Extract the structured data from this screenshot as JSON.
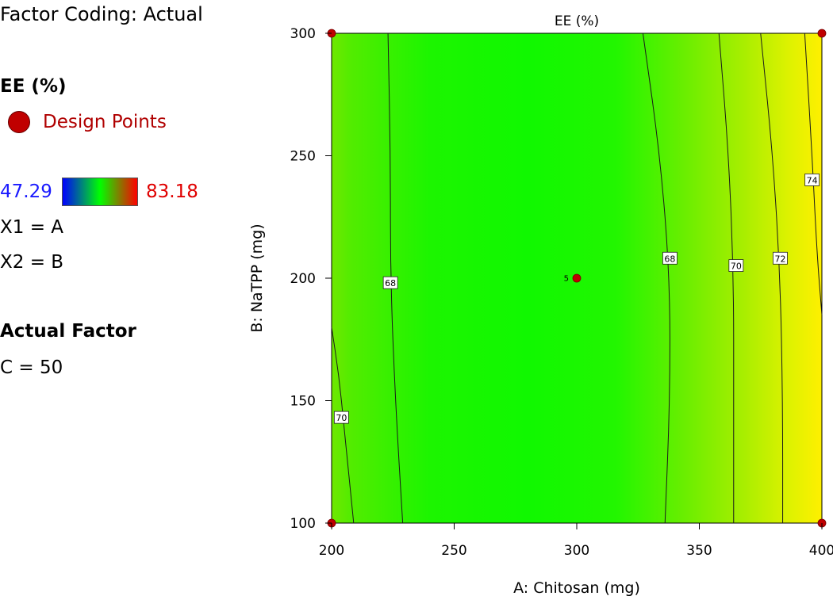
{
  "legend": {
    "factor_coding": "Factor Coding: Actual",
    "response_name": "EE (%)",
    "design_points_label": "Design Points",
    "scale_min": "47.29",
    "scale_max": "83.18",
    "x1": "X1 = A",
    "x2": "X2 = B",
    "actual_factor_title": "Actual Factor",
    "actual_factor_value": "C = 50"
  },
  "colors": {
    "low": "#0000ff",
    "mid": "#00ff00",
    "high": "#ff0000",
    "design_point": "#c00000"
  },
  "chart_data": {
    "type": "contour",
    "title": "EE (%)",
    "xlabel": "A: Chitosan (mg)",
    "ylabel": "B: NaTPP (mg)",
    "xlim": [
      200,
      400
    ],
    "ylim": [
      100,
      300
    ],
    "xticks": [
      200,
      250,
      300,
      350,
      400
    ],
    "yticks": [
      100,
      150,
      200,
      250,
      300
    ],
    "color_range": [
      47.29,
      83.18
    ],
    "contours": [
      {
        "level": 68,
        "label": "68",
        "label_at": [
          224,
          198
        ],
        "path": [
          [
            223,
            300
          ],
          [
            224,
            250
          ],
          [
            224,
            200
          ],
          [
            226,
            150
          ],
          [
            229,
            100
          ]
        ]
      },
      {
        "level": 68,
        "label": "68",
        "label_at": [
          338,
          208
        ],
        "path": [
          [
            327,
            300
          ],
          [
            334,
            250
          ],
          [
            338,
            200
          ],
          [
            338,
            150
          ],
          [
            336,
            100
          ]
        ]
      },
      {
        "level": 70,
        "label": "70",
        "label_at": [
          204,
          143
        ],
        "path": [
          [
            200,
            180
          ],
          [
            203,
            160
          ],
          [
            205,
            140
          ],
          [
            207,
            120
          ],
          [
            209,
            100
          ]
        ]
      },
      {
        "level": 70,
        "label": "70",
        "label_at": [
          365,
          205
        ],
        "path": [
          [
            358,
            300
          ],
          [
            362,
            250
          ],
          [
            364,
            200
          ],
          [
            364,
            150
          ],
          [
            364,
            100
          ]
        ]
      },
      {
        "level": 72,
        "label": "72",
        "label_at": [
          383,
          208
        ],
        "path": [
          [
            375,
            300
          ],
          [
            380,
            250
          ],
          [
            383,
            200
          ],
          [
            384,
            150
          ],
          [
            384,
            100
          ]
        ]
      },
      {
        "level": 74,
        "label": "74",
        "label_at": [
          396,
          240
        ],
        "path": [
          [
            393,
            300
          ],
          [
            396,
            250
          ],
          [
            398,
            210
          ],
          [
            400,
            185
          ]
        ]
      }
    ],
    "design_points": [
      {
        "x": 200,
        "y": 300
      },
      {
        "x": 400,
        "y": 300
      },
      {
        "x": 300,
        "y": 200,
        "label": "5"
      },
      {
        "x": 200,
        "y": 100
      },
      {
        "x": 400,
        "y": 100
      }
    ]
  }
}
